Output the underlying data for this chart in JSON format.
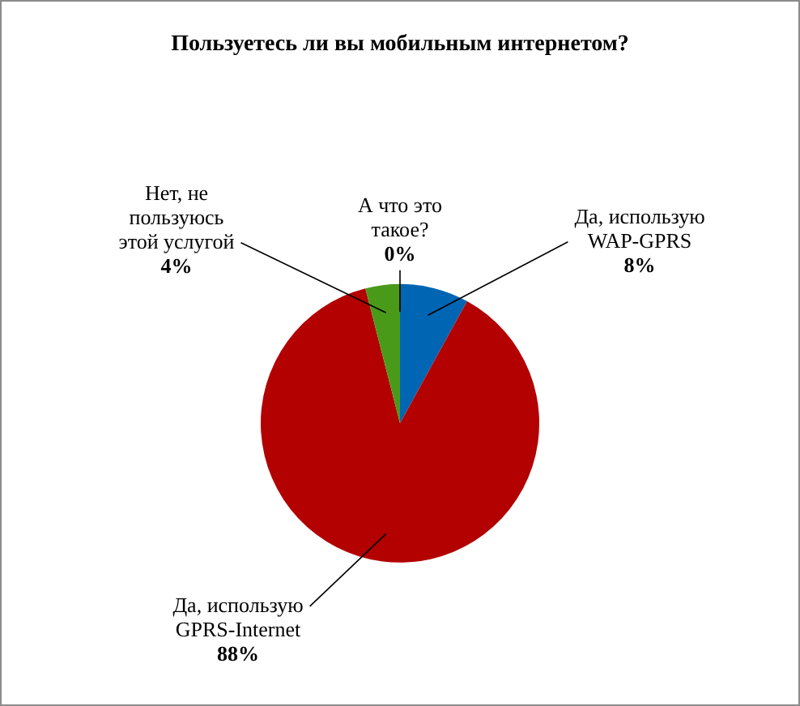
{
  "chart_data": {
    "type": "pie",
    "title": "Пользуетесь ли вы мобильным интернетом?",
    "categories": [
      "Да, использую WAP-GPRS",
      "Да, использую GPRS-Internet",
      "Нет, не пользуюсь этой услугой",
      "А что это такое?"
    ],
    "values": [
      8,
      88,
      4,
      0
    ],
    "value_labels": [
      "8%",
      "88%",
      "4%",
      "0%"
    ],
    "colors": [
      "#0066b3",
      "#b30000",
      "#4a9a1a",
      "#f2dcdb"
    ],
    "legend": false
  }
}
